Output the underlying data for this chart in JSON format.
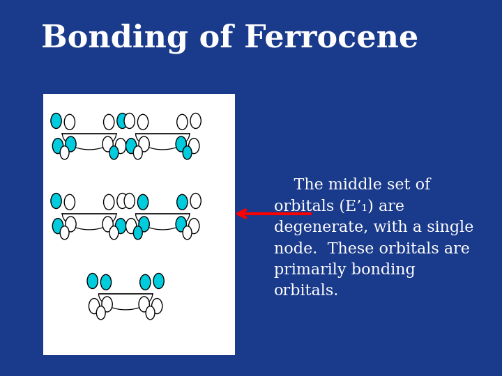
{
  "title": "Bonding of Ferrocene",
  "title_color": "white",
  "title_fontsize": 32,
  "title_fontweight": "bold",
  "bg_color": "#1a3a8c",
  "box_bg": "white",
  "text_color": "white",
  "text_fontsize": 16,
  "body_text": "    The middle set of\norbitals (E’₁) are\ndegenerate, with a single\nnode.  These orbitals are\nprimarily bonding\norbitals.",
  "orbital_fill_color": "#00ccdd",
  "orbital_edge_color": "black",
  "arrow_color": "red"
}
